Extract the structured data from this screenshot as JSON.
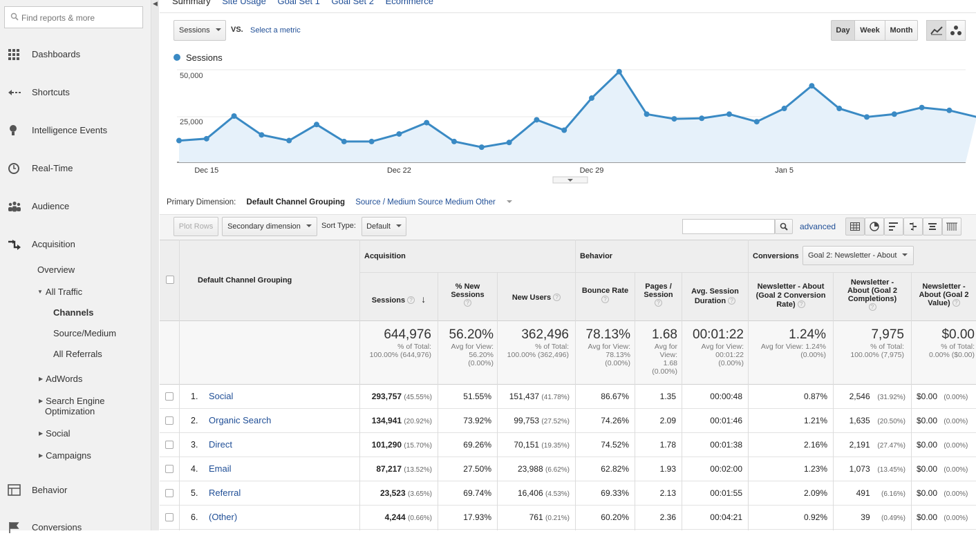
{
  "sidebar": {
    "search_placeholder": "Find reports & more",
    "nav": [
      {
        "label": "Dashboards",
        "icon": "grid-icon"
      },
      {
        "label": "Shortcuts",
        "icon": "shortcut-arrow-icon"
      },
      {
        "label": "Intelligence Events",
        "icon": "lightbulb-icon"
      },
      {
        "label": "Real-Time",
        "icon": "clock-icon"
      },
      {
        "label": "Audience",
        "icon": "people-icon"
      },
      {
        "label": "Acquisition",
        "icon": "acquisition-arrows-icon"
      },
      {
        "label": "Behavior",
        "icon": "page-layout-icon"
      },
      {
        "label": "Conversions",
        "icon": "flag-icon"
      }
    ],
    "acquisition_sub": {
      "overview": "Overview",
      "all_traffic": "All Traffic",
      "channels": "Channels",
      "source_medium": "Source/Medium",
      "all_referrals": "All Referrals",
      "adwords": "AdWords",
      "seo_line1": "Search Engine",
      "seo_line2": "Optimization",
      "social": "Social",
      "campaigns": "Campaigns"
    }
  },
  "tabs": [
    "Summary",
    "Site Usage",
    "Goal Set 1",
    "Goal Set 2",
    "Ecommerce"
  ],
  "chart_controls": {
    "metric": "Sessions",
    "vs": "VS.",
    "select_metric": "Select a metric",
    "periods": [
      "Day",
      "Week",
      "Month"
    ],
    "active_period": "Day"
  },
  "chart_data": {
    "type": "line",
    "series": [
      {
        "name": "Sessions",
        "color": "#3a8ac4",
        "values": [
          11500,
          12500,
          24500,
          14500,
          11500,
          20000,
          11000,
          11000,
          15000,
          21000,
          11000,
          8000,
          10500,
          22500,
          17000,
          34000,
          48000,
          25500,
          23000,
          23300,
          25500,
          21500,
          28500,
          40500,
          28500,
          24000,
          25500,
          29000,
          27500,
          24000
        ]
      }
    ],
    "ylim": [
      0,
      50000
    ],
    "y_ticks": [
      "50,000",
      "25,000"
    ],
    "x_tick_labels": [
      "Dec 15",
      "Dec 22",
      "Dec 29",
      "Jan 5"
    ]
  },
  "primary_dimension": {
    "label": "Primary Dimension:",
    "current": "Default Channel Grouping",
    "options": [
      "Source / Medium",
      "Source",
      "Medium",
      "Other"
    ]
  },
  "toolbar": {
    "plot_rows": "Plot Rows",
    "secondary_dimension": "Secondary dimension",
    "sort_type_label": "Sort Type:",
    "sort_type_value": "Default",
    "advanced": "advanced"
  },
  "table": {
    "dimension_header": "Default Channel Grouping",
    "groups": {
      "acquisition": "Acquisition",
      "behavior": "Behavior",
      "conversions": "Conversions",
      "goal_select": "Goal 2: Newsletter - About"
    },
    "headers": {
      "sessions": "Sessions",
      "pct_new_l1": "% New",
      "pct_new_l2": "Sessions",
      "new_users": "New Users",
      "bounce": "Bounce Rate",
      "pages_l1": "Pages /",
      "pages_l2": "Session",
      "dur_l1": "Avg. Session",
      "dur_l2": "Duration",
      "cr_l1": "Newsletter - About",
      "cr_l2": "(Goal 2 Conversion",
      "cr_l3": "Rate)",
      "comp_l1": "Newsletter -",
      "comp_l2": "About (Goal 2",
      "comp_l3": "Completions)",
      "val_l1": "Newsletter -",
      "val_l2": "About (Goal 2",
      "val_l3": "Value)"
    },
    "totals": {
      "sessions": "644,976",
      "sessions_sub1": "% of Total:",
      "sessions_sub2": "100.00% (644,976)",
      "pct_new": "56.20%",
      "pct_new_sub1": "Avg for View:",
      "pct_new_sub2": "56.20%",
      "pct_new_sub3": "(0.00%)",
      "new_users": "362,496",
      "new_users_sub1": "% of Total:",
      "new_users_sub2": "100.00% (362,496)",
      "bounce": "78.13%",
      "bounce_sub1": "Avg for View:",
      "bounce_sub2": "78.13%",
      "bounce_sub3": "(0.00%)",
      "pages": "1.68",
      "pages_sub1": "Avg for",
      "pages_sub2": "View:",
      "pages_sub3": "1.68",
      "pages_sub4": "(0.00%)",
      "dur": "00:01:22",
      "dur_sub1": "Avg for View:",
      "dur_sub2": "00:01:22",
      "dur_sub3": "(0.00%)",
      "cr": "1.24%",
      "cr_sub1": "Avg for View: 1.24%",
      "cr_sub2": "(0.00%)",
      "comp": "7,975",
      "comp_sub1": "% of Total:",
      "comp_sub2": "100.00% (7,975)",
      "val": "$0.00",
      "val_sub1": "% of Total:",
      "val_sub2": "0.00% ($0.00)"
    },
    "rows": [
      {
        "idx": "1.",
        "name": "Social",
        "sessions": "293,757",
        "sessions_pct": "(45.55%)",
        "pct_new": "51.55%",
        "new_users": "151,437",
        "new_users_pct": "(41.78%)",
        "bounce": "86.67%",
        "pages": "1.35",
        "dur": "00:00:48",
        "cr": "0.87%",
        "comp": "2,546",
        "comp_pct": "(31.92%)",
        "val": "$0.00",
        "val_pct": "(0.00%)"
      },
      {
        "idx": "2.",
        "name": "Organic Search",
        "sessions": "134,941",
        "sessions_pct": "(20.92%)",
        "pct_new": "73.92%",
        "new_users": "99,753",
        "new_users_pct": "(27.52%)",
        "bounce": "74.26%",
        "pages": "2.09",
        "dur": "00:01:46",
        "cr": "1.21%",
        "comp": "1,635",
        "comp_pct": "(20.50%)",
        "val": "$0.00",
        "val_pct": "(0.00%)"
      },
      {
        "idx": "3.",
        "name": "Direct",
        "sessions": "101,290",
        "sessions_pct": "(15.70%)",
        "pct_new": "69.26%",
        "new_users": "70,151",
        "new_users_pct": "(19.35%)",
        "bounce": "74.52%",
        "pages": "1.78",
        "dur": "00:01:38",
        "cr": "2.16%",
        "comp": "2,191",
        "comp_pct": "(27.47%)",
        "val": "$0.00",
        "val_pct": "(0.00%)"
      },
      {
        "idx": "4.",
        "name": "Email",
        "sessions": "87,217",
        "sessions_pct": "(13.52%)",
        "pct_new": "27.50%",
        "new_users": "23,988",
        "new_users_pct": "(6.62%)",
        "bounce": "62.82%",
        "pages": "1.93",
        "dur": "00:02:00",
        "cr": "1.23%",
        "comp": "1,073",
        "comp_pct": "(13.45%)",
        "val": "$0.00",
        "val_pct": "(0.00%)"
      },
      {
        "idx": "5.",
        "name": "Referral",
        "sessions": "23,523",
        "sessions_pct": "(3.65%)",
        "pct_new": "69.74%",
        "new_users": "16,406",
        "new_users_pct": "(4.53%)",
        "bounce": "69.33%",
        "pages": "2.13",
        "dur": "00:01:55",
        "cr": "2.09%",
        "comp": "491",
        "comp_pct": "(6.16%)",
        "val": "$0.00",
        "val_pct": "(0.00%)"
      },
      {
        "idx": "6.",
        "name": "(Other)",
        "sessions": "4,244",
        "sessions_pct": "(0.66%)",
        "pct_new": "17.93%",
        "new_users": "761",
        "new_users_pct": "(0.21%)",
        "bounce": "60.20%",
        "pages": "2.36",
        "dur": "00:04:21",
        "cr": "0.92%",
        "comp": "39",
        "comp_pct": "(0.49%)",
        "val": "$0.00",
        "val_pct": "(0.00%)"
      }
    ]
  }
}
